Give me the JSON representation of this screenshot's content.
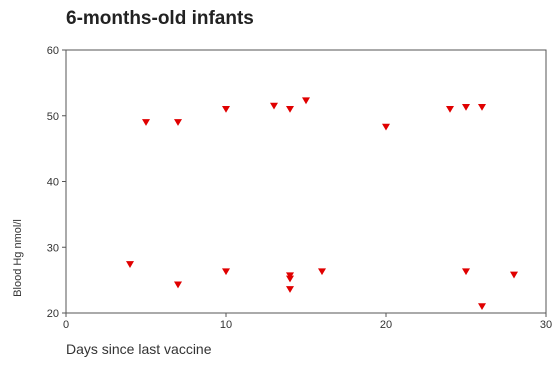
{
  "chart_data": {
    "type": "scatter",
    "title": "6-months-old infants",
    "xlabel": "Days since last vaccine",
    "ylabel": "Blood Hg nmol/l",
    "xlim": [
      0,
      30
    ],
    "ylim": [
      20,
      60
    ],
    "x_ticks": [
      0,
      10,
      20,
      30
    ],
    "y_ticks": [
      20,
      30,
      40,
      50,
      60
    ],
    "grid": false,
    "marker": "triangle-down",
    "color": "#e00000",
    "points": [
      {
        "x": 4,
        "y": 27.4
      },
      {
        "x": 5,
        "y": 49.0
      },
      {
        "x": 7,
        "y": 49.0
      },
      {
        "x": 7,
        "y": 24.3
      },
      {
        "x": 10,
        "y": 51.0
      },
      {
        "x": 10,
        "y": 26.3
      },
      {
        "x": 13,
        "y": 51.5
      },
      {
        "x": 14,
        "y": 51.0
      },
      {
        "x": 14,
        "y": 25.7
      },
      {
        "x": 14,
        "y": 25.2
      },
      {
        "x": 14,
        "y": 23.6
      },
      {
        "x": 15,
        "y": 52.3
      },
      {
        "x": 16,
        "y": 26.3
      },
      {
        "x": 20,
        "y": 48.3
      },
      {
        "x": 24,
        "y": 51.0
      },
      {
        "x": 25,
        "y": 51.3
      },
      {
        "x": 25,
        "y": 26.3
      },
      {
        "x": 26,
        "y": 51.3
      },
      {
        "x": 26,
        "y": 21.0
      },
      {
        "x": 28,
        "y": 25.8
      }
    ]
  }
}
